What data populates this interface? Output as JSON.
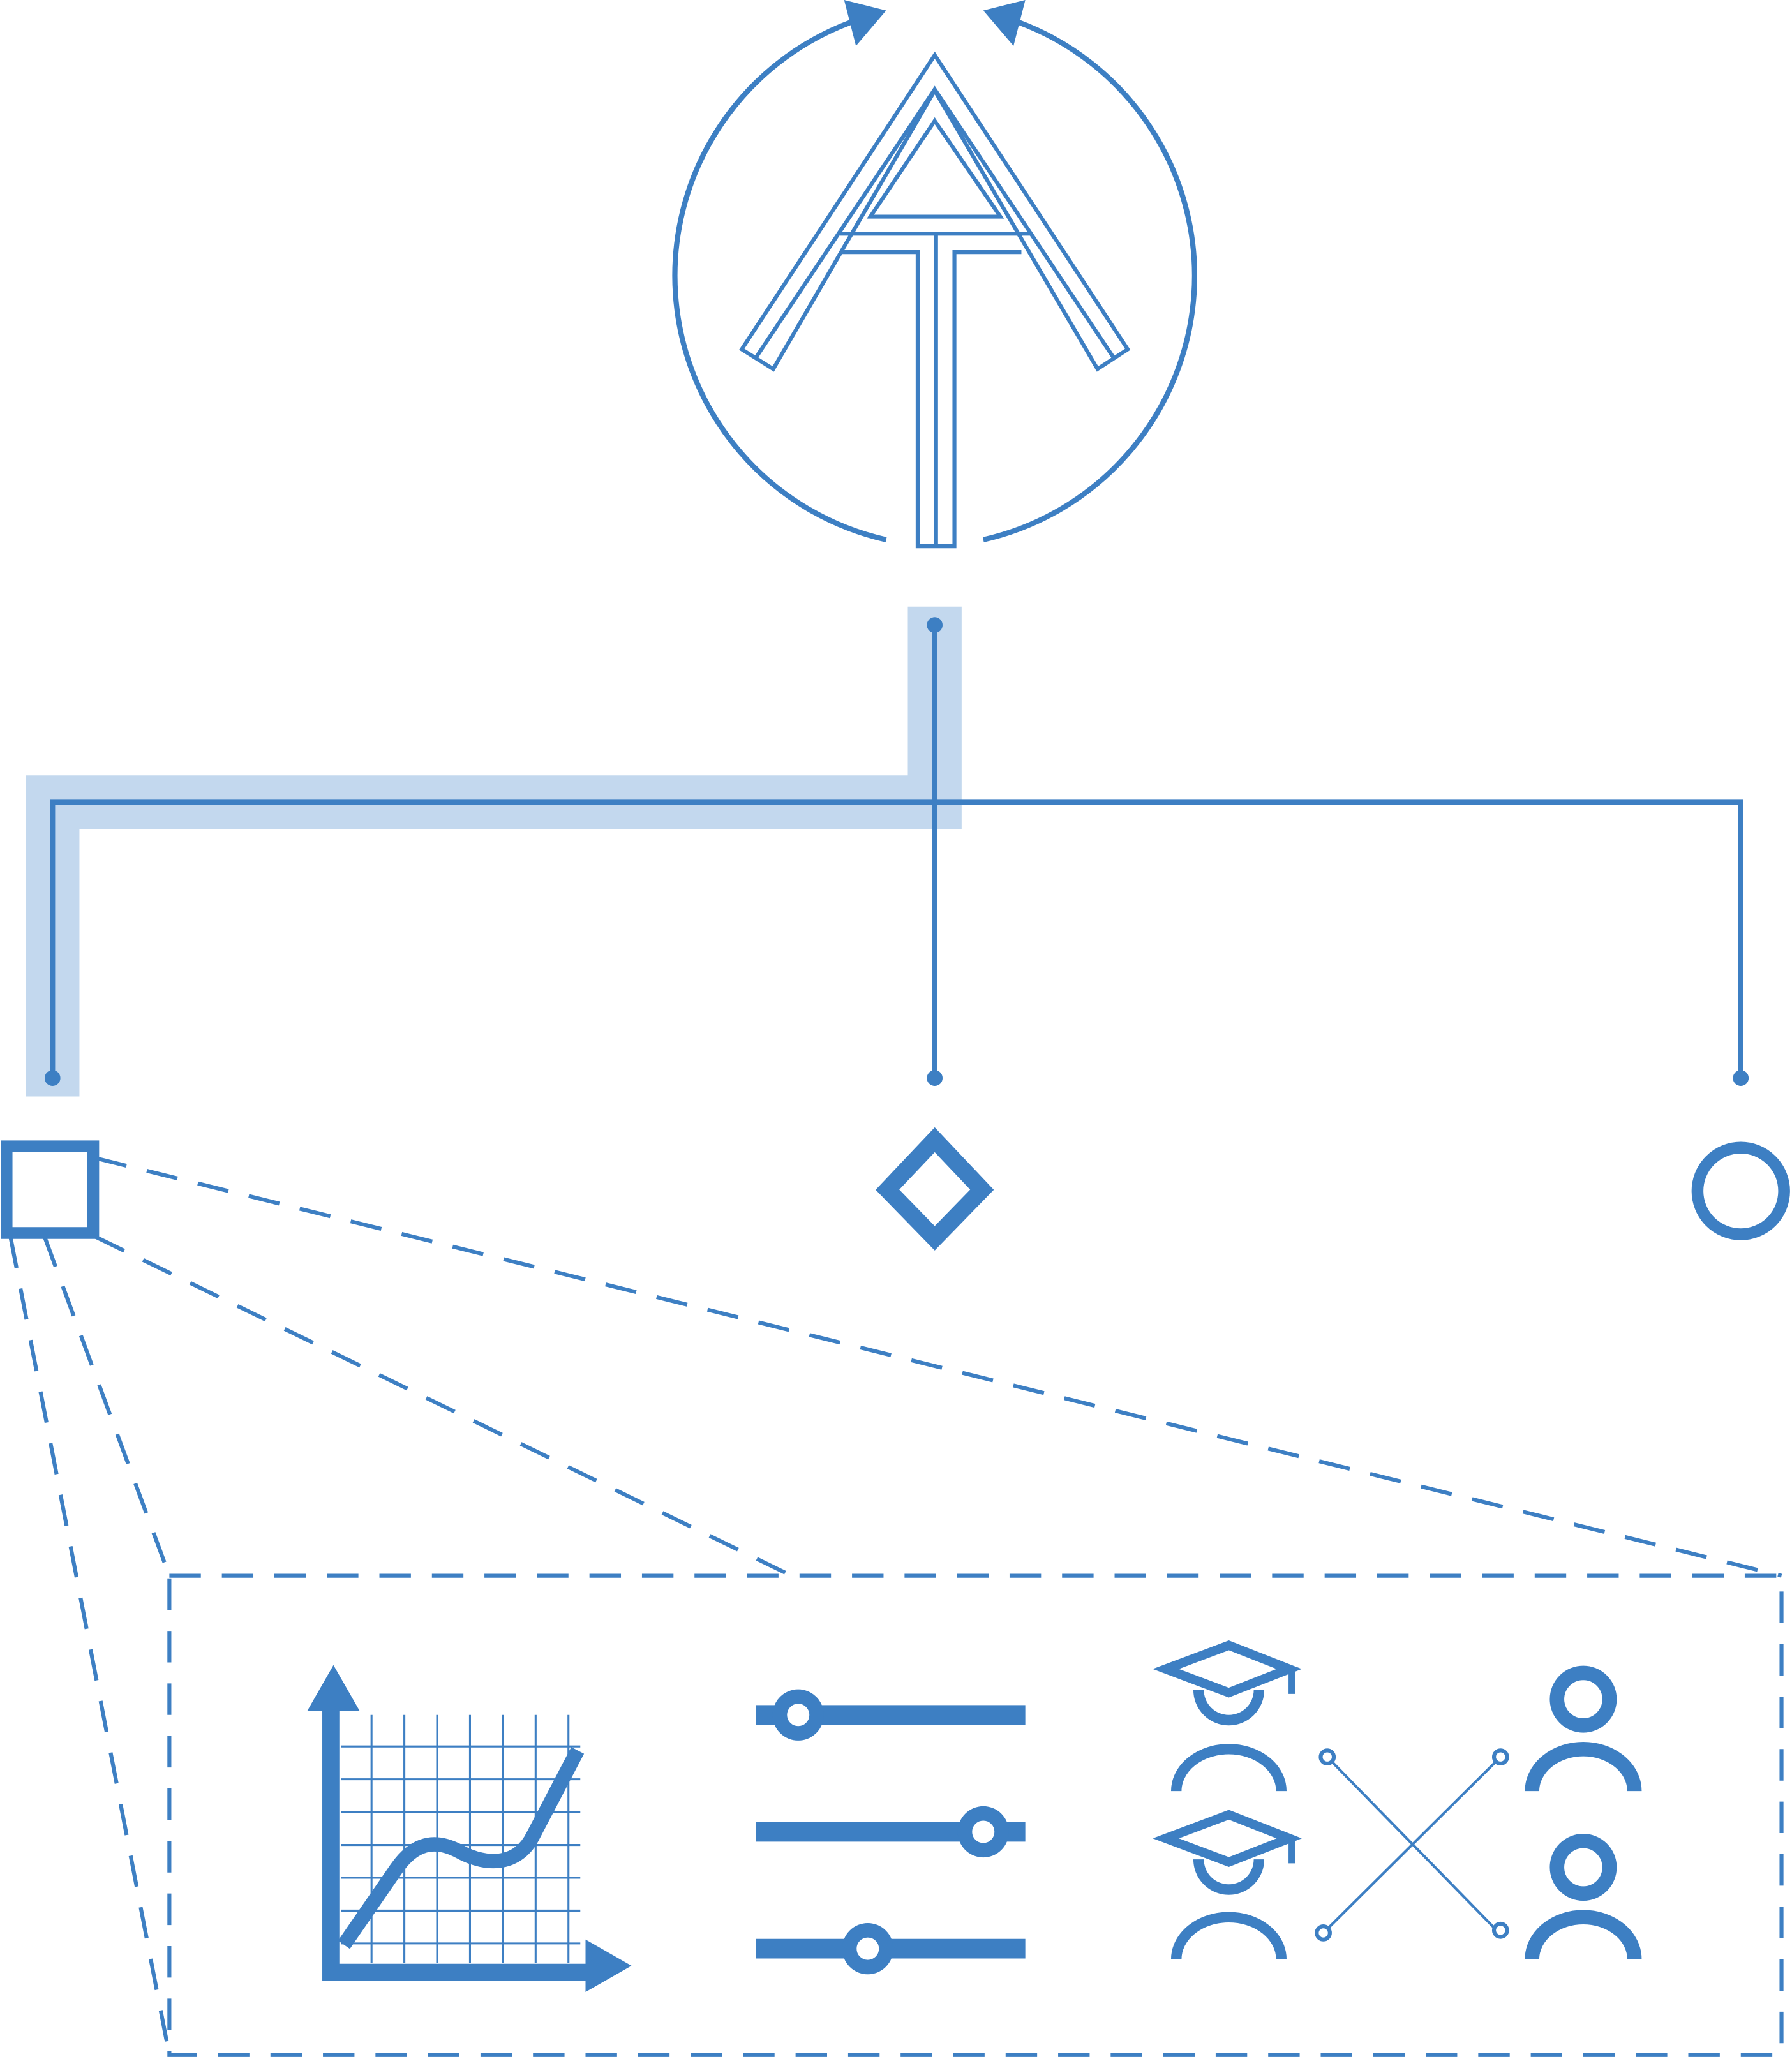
{
  "colors": {
    "primary": "#3d7fc3",
    "highlight": "#c3d8ee",
    "background": "#ffffff"
  },
  "nodes": {
    "root": {
      "icon": "stylized-a-arrow-icon"
    },
    "children": [
      {
        "icon": "square-icon"
      },
      {
        "icon": "diamond-icon"
      },
      {
        "icon": "circle-icon"
      }
    ]
  },
  "detail_panel": {
    "icons": [
      "chart-icon",
      "sliders-icon",
      "mentor-matching-icon"
    ]
  }
}
